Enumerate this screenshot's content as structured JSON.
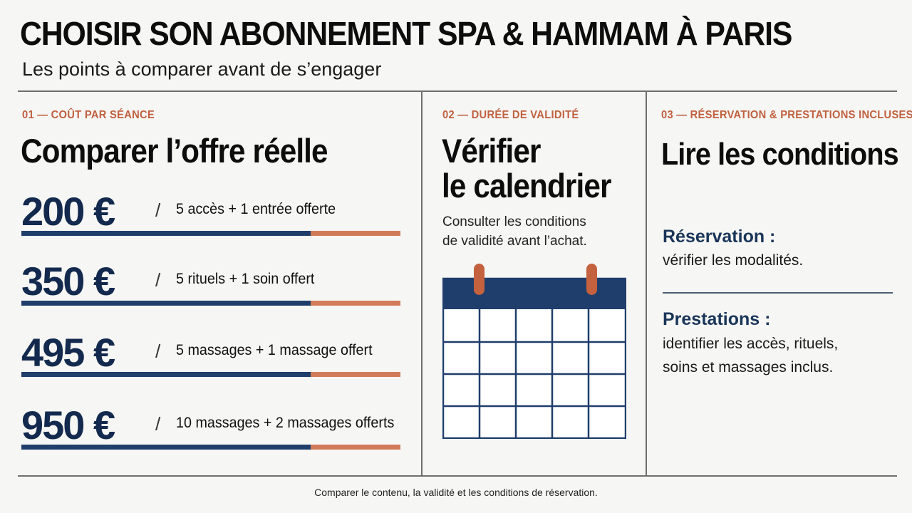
{
  "header": {
    "title": "CHOISIR SON ABONNEMENT SPA & HAMMAM À PARIS",
    "subtitle": "Les points à comparer avant de s’engager"
  },
  "columns": {
    "cost": {
      "kicker": "01 — COÛT PAR SÉANCE",
      "title": "Comparer l’offre réelle",
      "offers": [
        {
          "price": "200 €",
          "separator": "/",
          "description": "5 accès + 1 entrée offerte"
        },
        {
          "price": "350 €",
          "separator": "/",
          "description": "5 rituels + 1 soin offert"
        },
        {
          "price": "495 €",
          "separator": "/",
          "description": "5 massages + 1 massage offert"
        },
        {
          "price": "950 €",
          "separator": "/",
          "description": "10 massages + 2 massages offerts"
        }
      ]
    },
    "validity": {
      "kicker": "02 — DURÉE DE VALIDITÉ",
      "title_line1": "Vérifier",
      "title_line2": "le calendrier",
      "desc_line1": "Consulter les conditions",
      "desc_line2": "de validité avant l’achat.",
      "icon": "calendar-icon"
    },
    "conditions": {
      "kicker": "03 — RÉSERVATION & PRESTATIONS INCLUSES",
      "title": "Lire les conditions",
      "reservation_heading": "Réservation :",
      "reservation_text": "vérifier les modalités.",
      "prestations_heading": "Prestations :",
      "prestations_line1": "identifier les accès, rituels,",
      "prestations_line2": "soins et massages inclus."
    }
  },
  "footer": {
    "text": "Comparer le contenu, la validité et les conditions de réservation."
  },
  "colors": {
    "navy": "#1f3e6b",
    "orange": "#d27b5a",
    "kicker": "#c0603f",
    "background": "#f6f6f4"
  }
}
